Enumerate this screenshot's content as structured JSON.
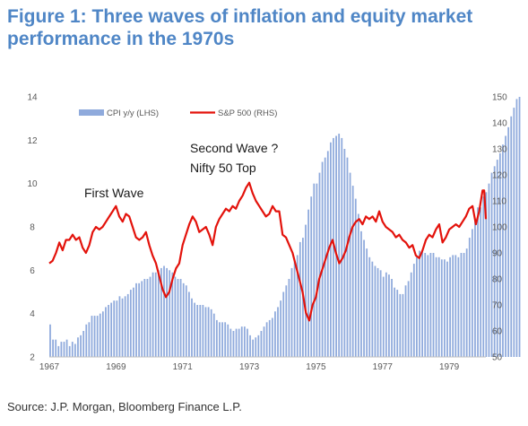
{
  "figure": {
    "title": "Figure 1: Three waves of inflation and equity market performance in the 1970s",
    "source": "Source: J.P. Morgan, Bloomberg Finance L.P."
  },
  "colors": {
    "title": "#4f86c6",
    "cpi_bar": "#8faadc",
    "sp500_line": "#e3120b",
    "axis_text": "#595959"
  },
  "chart_data": {
    "type": "bar",
    "x_ticks": [
      "1967",
      "1969",
      "1971",
      "1973",
      "1975",
      "1977",
      "1979"
    ],
    "x_range": [
      1967.0,
      1980.1
    ],
    "left_axis": {
      "ticks": [
        "2",
        "4",
        "6",
        "8",
        "10",
        "12",
        "14"
      ],
      "range": [
        2,
        14
      ]
    },
    "right_axis": {
      "ticks": [
        "50",
        "60",
        "70",
        "80",
        "90",
        "100",
        "110",
        "120",
        "130",
        "140",
        "150"
      ],
      "range": [
        50,
        150
      ]
    },
    "legend": {
      "position": "top-left"
    },
    "annotations": [
      "First Wave",
      "Second Wave ?",
      "Nifty 50 Top"
    ],
    "series": [
      {
        "name": "CPI y/y (LHS)",
        "type": "bar",
        "axis": "left",
        "x_start": 1967.0,
        "x_step": 0.08333,
        "values": [
          3.5,
          2.8,
          2.8,
          2.5,
          2.7,
          2.7,
          2.8,
          2.5,
          2.7,
          2.6,
          2.9,
          3.0,
          3.2,
          3.5,
          3.6,
          3.9,
          3.9,
          3.9,
          4.0,
          4.1,
          4.3,
          4.4,
          4.5,
          4.6,
          4.6,
          4.8,
          4.7,
          4.8,
          4.9,
          5.1,
          5.2,
          5.4,
          5.4,
          5.5,
          5.6,
          5.6,
          5.7,
          5.9,
          5.9,
          6.0,
          6.1,
          6.2,
          6.1,
          6.0,
          5.9,
          5.7,
          5.6,
          5.6,
          5.4,
          5.3,
          5.0,
          4.7,
          4.5,
          4.4,
          4.4,
          4.4,
          4.3,
          4.3,
          4.2,
          4.0,
          3.7,
          3.6,
          3.6,
          3.6,
          3.5,
          3.3,
          3.2,
          3.3,
          3.3,
          3.4,
          3.4,
          3.3,
          3.0,
          2.8,
          2.9,
          3.0,
          3.2,
          3.4,
          3.6,
          3.7,
          3.8,
          4.1,
          4.3,
          4.6,
          5.0,
          5.3,
          5.6,
          6.1,
          6.4,
          6.7,
          7.3,
          7.5,
          8.1,
          8.8,
          9.4,
          10.0,
          10.0,
          10.5,
          11.0,
          11.2,
          11.5,
          11.9,
          12.1,
          12.2,
          12.3,
          12.1,
          11.6,
          11.2,
          10.5,
          9.9,
          9.3,
          8.6,
          7.8,
          7.4,
          7.0,
          6.6,
          6.4,
          6.2,
          6.1,
          6.0,
          5.7,
          5.9,
          5.8,
          5.6,
          5.2,
          5.1,
          4.9,
          4.9,
          5.3,
          5.5,
          5.9,
          6.3,
          6.6,
          6.9,
          6.9,
          6.8,
          6.7,
          6.8,
          6.8,
          6.6,
          6.6,
          6.5,
          6.5,
          6.4,
          6.6,
          6.7,
          6.7,
          6.6,
          6.8,
          6.8,
          7.0,
          7.5,
          7.9,
          8.3,
          8.9,
          8.9,
          9.4,
          9.6,
          10.0,
          10.5,
          10.8,
          11.1,
          11.4,
          11.8,
          12.2,
          12.6,
          13.1,
          13.5,
          13.9,
          14.0
        ]
      },
      {
        "name": "S&P 500 (RHS)",
        "type": "line",
        "axis": "right",
        "points": [
          [
            1967.0,
            86
          ],
          [
            1967.1,
            87
          ],
          [
            1967.2,
            90
          ],
          [
            1967.3,
            94
          ],
          [
            1967.4,
            91
          ],
          [
            1967.5,
            95
          ],
          [
            1967.6,
            95
          ],
          [
            1967.7,
            97
          ],
          [
            1967.8,
            95
          ],
          [
            1967.9,
            96
          ],
          [
            1968.0,
            92
          ],
          [
            1968.1,
            90
          ],
          [
            1968.2,
            93
          ],
          [
            1968.3,
            98
          ],
          [
            1968.4,
            100
          ],
          [
            1968.5,
            99
          ],
          [
            1968.6,
            100
          ],
          [
            1968.7,
            102
          ],
          [
            1968.8,
            104
          ],
          [
            1968.9,
            106
          ],
          [
            1969.0,
            108
          ],
          [
            1969.1,
            104
          ],
          [
            1969.2,
            102
          ],
          [
            1969.3,
            105
          ],
          [
            1969.4,
            104
          ],
          [
            1969.5,
            100
          ],
          [
            1969.6,
            96
          ],
          [
            1969.7,
            95
          ],
          [
            1969.8,
            96
          ],
          [
            1969.9,
            98
          ],
          [
            1970.0,
            93
          ],
          [
            1970.1,
            89
          ],
          [
            1970.2,
            86
          ],
          [
            1970.3,
            81
          ],
          [
            1970.4,
            76
          ],
          [
            1970.5,
            73
          ],
          [
            1970.6,
            75
          ],
          [
            1970.7,
            80
          ],
          [
            1970.8,
            84
          ],
          [
            1970.9,
            86
          ],
          [
            1971.0,
            93
          ],
          [
            1971.1,
            97
          ],
          [
            1971.2,
            101
          ],
          [
            1971.3,
            104
          ],
          [
            1971.4,
            102
          ],
          [
            1971.5,
            98
          ],
          [
            1971.6,
            99
          ],
          [
            1971.7,
            100
          ],
          [
            1971.8,
            97
          ],
          [
            1971.9,
            93
          ],
          [
            1972.0,
            100
          ],
          [
            1972.1,
            103
          ],
          [
            1972.2,
            105
          ],
          [
            1972.3,
            107
          ],
          [
            1972.4,
            106
          ],
          [
            1972.5,
            108
          ],
          [
            1972.6,
            107
          ],
          [
            1972.7,
            110
          ],
          [
            1972.8,
            112
          ],
          [
            1972.9,
            115
          ],
          [
            1973.0,
            117
          ],
          [
            1973.1,
            113
          ],
          [
            1973.2,
            110
          ],
          [
            1973.3,
            108
          ],
          [
            1973.4,
            106
          ],
          [
            1973.5,
            104
          ],
          [
            1973.6,
            105
          ],
          [
            1973.7,
            108
          ],
          [
            1973.8,
            106
          ],
          [
            1973.9,
            106
          ],
          [
            1974.0,
            97
          ],
          [
            1974.1,
            96
          ],
          [
            1974.2,
            93
          ],
          [
            1974.3,
            90
          ],
          [
            1974.4,
            85
          ],
          [
            1974.5,
            80
          ],
          [
            1974.6,
            75
          ],
          [
            1974.7,
            67
          ],
          [
            1974.8,
            64
          ],
          [
            1974.9,
            70
          ],
          [
            1975.0,
            73
          ],
          [
            1975.1,
            80
          ],
          [
            1975.2,
            84
          ],
          [
            1975.3,
            88
          ],
          [
            1975.4,
            92
          ],
          [
            1975.5,
            95
          ],
          [
            1975.6,
            90
          ],
          [
            1975.7,
            86
          ],
          [
            1975.8,
            88
          ],
          [
            1975.9,
            91
          ],
          [
            1976.0,
            96
          ],
          [
            1976.1,
            100
          ],
          [
            1976.2,
            102
          ],
          [
            1976.3,
            103
          ],
          [
            1976.4,
            101
          ],
          [
            1976.5,
            104
          ],
          [
            1976.6,
            103
          ],
          [
            1976.7,
            104
          ],
          [
            1976.8,
            102
          ],
          [
            1976.9,
            106
          ],
          [
            1977.0,
            102
          ],
          [
            1977.1,
            100
          ],
          [
            1977.2,
            99
          ],
          [
            1977.3,
            98
          ],
          [
            1977.4,
            96
          ],
          [
            1977.5,
            97
          ],
          [
            1977.6,
            95
          ],
          [
            1977.7,
            94
          ],
          [
            1977.8,
            92
          ],
          [
            1977.9,
            93
          ],
          [
            1978.0,
            89
          ],
          [
            1978.1,
            88
          ],
          [
            1978.2,
            91
          ],
          [
            1978.3,
            95
          ],
          [
            1978.4,
            97
          ],
          [
            1978.5,
            96
          ],
          [
            1978.6,
            99
          ],
          [
            1978.7,
            101
          ],
          [
            1978.8,
            94
          ],
          [
            1978.9,
            96
          ],
          [
            1979.0,
            99
          ],
          [
            1979.1,
            100
          ],
          [
            1979.2,
            101
          ],
          [
            1979.3,
            100
          ],
          [
            1979.4,
            102
          ],
          [
            1979.5,
            104
          ],
          [
            1979.6,
            107
          ],
          [
            1979.7,
            108
          ],
          [
            1979.8,
            101
          ],
          [
            1979.9,
            106
          ],
          [
            1980.0,
            114
          ],
          [
            1980.05,
            114
          ],
          [
            1980.1,
            103
          ]
        ]
      }
    ]
  }
}
